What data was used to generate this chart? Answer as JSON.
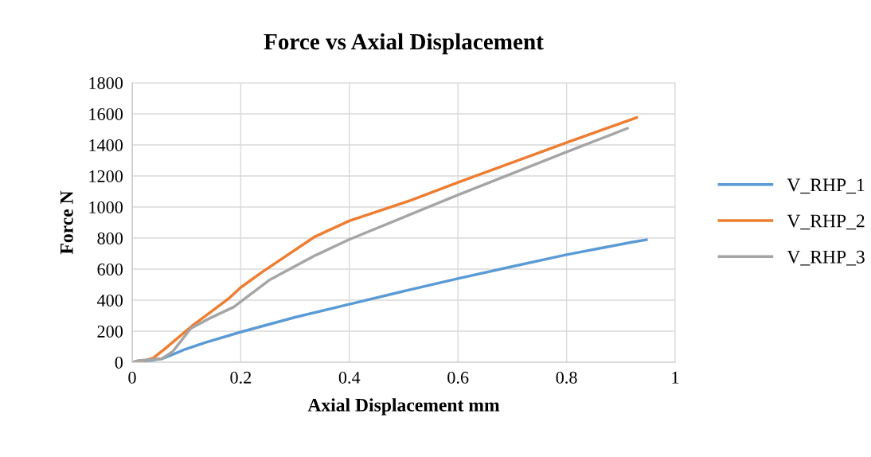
{
  "chart_data": {
    "type": "line",
    "title": "Force vs Axial Displacement",
    "xlabel": "Axial Displacement mm",
    "ylabel": "Force N",
    "xlim": [
      0,
      1
    ],
    "xticks": [
      0,
      0.2,
      0.4,
      0.6,
      0.8,
      1
    ],
    "ylim": [
      0,
      1800
    ],
    "yticks": [
      0,
      200,
      400,
      600,
      800,
      1000,
      1200,
      1400,
      1600,
      1800
    ],
    "grid": true,
    "legend": "right",
    "marker": "none",
    "line_style": "solid",
    "series": [
      {
        "name": "V_RHP_1",
        "color": "#5b9bd5",
        "x": [
          0,
          0.03,
          0.055,
          0.075,
          0.095,
          0.134,
          0.2,
          0.3,
          0.4,
          0.5,
          0.6,
          0.7,
          0.8,
          0.92,
          0.947
        ],
        "values": [
          0,
          10,
          23,
          50,
          80,
          126,
          195,
          290,
          374,
          458,
          539,
          617,
          693,
          773,
          789
        ]
      },
      {
        "name": "V_RHP_2",
        "color": "#ed7d31",
        "x": [
          0,
          0.02,
          0.039,
          0.062,
          0.111,
          0.177,
          0.2,
          0.239,
          0.337,
          0.4,
          0.514,
          0.6,
          0.8,
          0.929
        ],
        "values": [
          0,
          8,
          28,
          92,
          236,
          408,
          482,
          580,
          810,
          911,
          1044,
          1158,
          1415,
          1576
        ]
      },
      {
        "name": "V_RHP_3",
        "color": "#a5a5a5",
        "x": [
          0,
          0.01,
          0.055,
          0.075,
          0.108,
          0.141,
          0.187,
          0.252,
          0.337,
          0.4,
          0.6,
          0.8,
          0.912
        ],
        "values": [
          0,
          10,
          23,
          70,
          218,
          280,
          356,
          528,
          688,
          791,
          1078,
          1354,
          1507
        ]
      }
    ]
  }
}
